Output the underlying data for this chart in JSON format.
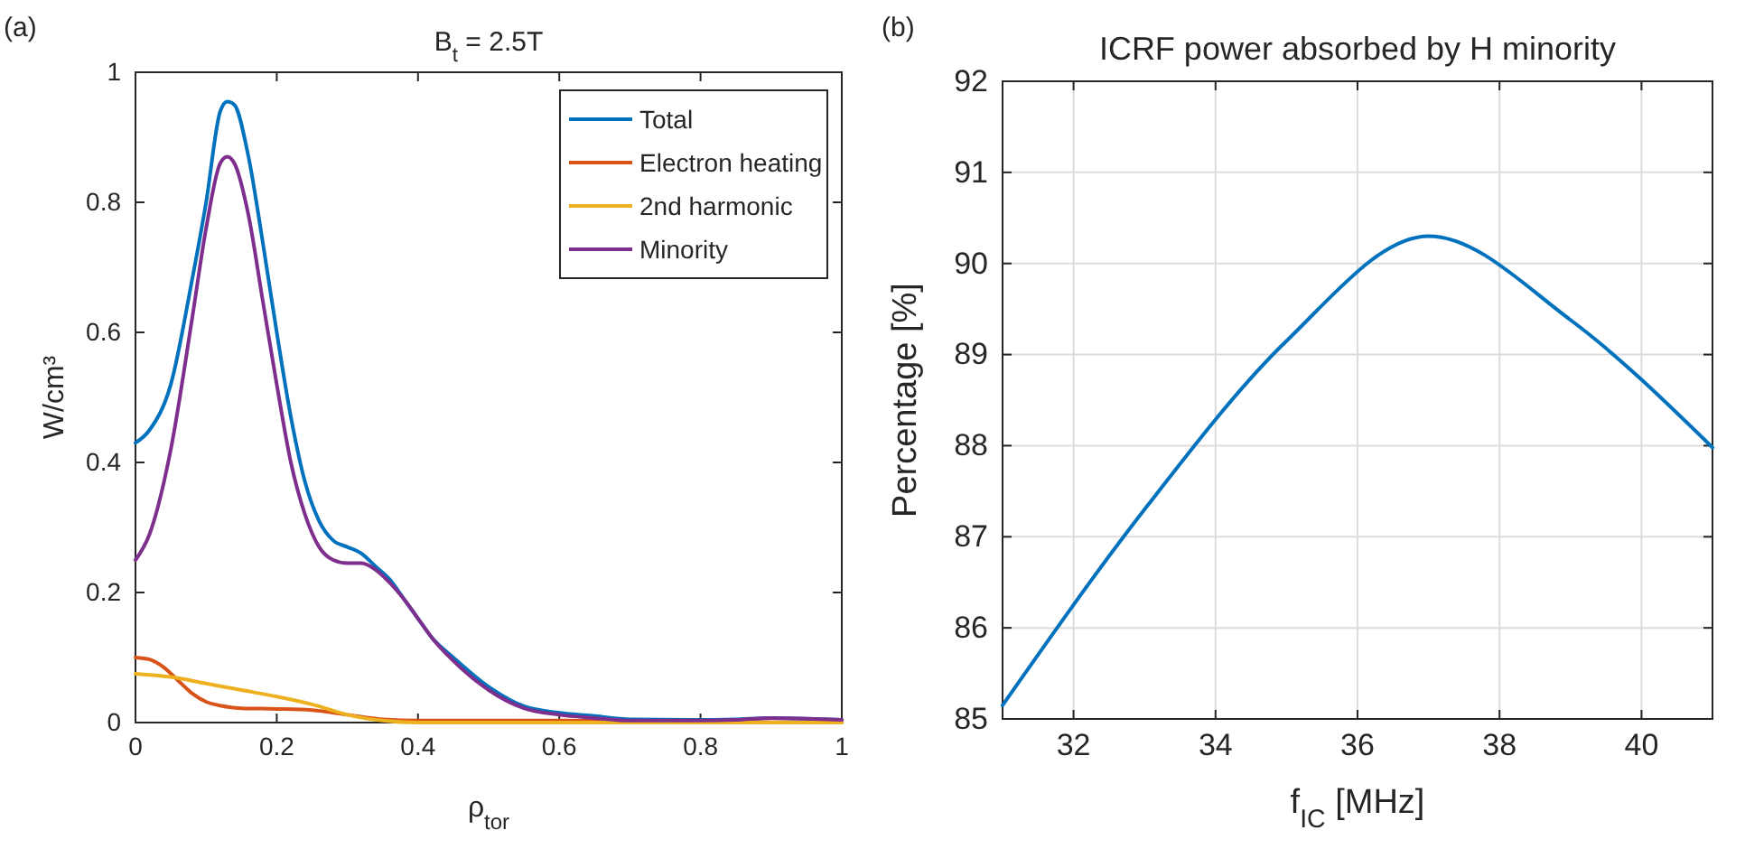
{
  "chart_data": [
    {
      "type": "line",
      "title": "B$_{t}$ = 2.5T",
      "xlabel": "ρ$_{tor}$",
      "ylabel": "W/cm³",
      "annotations": [
        "(a)"
      ],
      "xlim": [
        0,
        1
      ],
      "ylim": [
        0,
        1
      ],
      "xticks": [
        0,
        0.2,
        0.4,
        0.6,
        0.8,
        1
      ],
      "yticks": [
        0,
        0.2,
        0.4,
        0.6,
        0.8,
        1
      ],
      "grid": false,
      "legend": "top right",
      "series": [
        {
          "name": "Total",
          "color": "#0072bd",
          "x": [
            0,
            0.02,
            0.05,
            0.08,
            0.1,
            0.12,
            0.13,
            0.14,
            0.16,
            0.18,
            0.2,
            0.22,
            0.24,
            0.26,
            0.28,
            0.3,
            0.32,
            0.34,
            0.36,
            0.38,
            0.4,
            0.42,
            0.45,
            0.5,
            0.55,
            0.6,
            0.65,
            0.7,
            0.8,
            0.85,
            0.9,
            0.95,
            1
          ],
          "values": [
            0.43,
            0.45,
            0.52,
            0.68,
            0.8,
            0.94,
            0.955,
            0.95,
            0.87,
            0.74,
            0.6,
            0.47,
            0.37,
            0.31,
            0.28,
            0.27,
            0.26,
            0.24,
            0.22,
            0.19,
            0.16,
            0.13,
            0.1,
            0.055,
            0.025,
            0.015,
            0.01,
            0.005,
            0.004,
            0.005,
            0.007,
            0.006,
            0.004
          ]
        },
        {
          "name": "Electron heating",
          "color": "#d95319",
          "x": [
            0,
            0.02,
            0.04,
            0.06,
            0.08,
            0.1,
            0.12,
            0.15,
            0.2,
            0.25,
            0.3,
            0.35,
            0.4,
            0.6,
            0.8,
            1
          ],
          "values": [
            0.1,
            0.097,
            0.085,
            0.065,
            0.045,
            0.032,
            0.026,
            0.022,
            0.021,
            0.019,
            0.012,
            0.005,
            0.003,
            0.003,
            0.001,
            0
          ]
        },
        {
          "name": "2nd harmonic",
          "color": "#edb120",
          "x": [
            0,
            0.05,
            0.1,
            0.15,
            0.2,
            0.25,
            0.3,
            0.35,
            0.4,
            1
          ],
          "values": [
            0.075,
            0.07,
            0.06,
            0.05,
            0.04,
            0.028,
            0.012,
            0.003,
            0,
            0
          ]
        },
        {
          "name": "Minority",
          "color": "#7e2f8e",
          "x": [
            0,
            0.02,
            0.05,
            0.08,
            0.1,
            0.12,
            0.13,
            0.14,
            0.16,
            0.18,
            0.2,
            0.22,
            0.24,
            0.26,
            0.28,
            0.3,
            0.32,
            0.34,
            0.36,
            0.38,
            0.4,
            0.42,
            0.45,
            0.5,
            0.55,
            0.6,
            0.65,
            0.7,
            0.8,
            0.85,
            0.9,
            0.95,
            1
          ],
          "values": [
            0.25,
            0.29,
            0.42,
            0.62,
            0.76,
            0.86,
            0.87,
            0.86,
            0.78,
            0.65,
            0.52,
            0.4,
            0.32,
            0.27,
            0.25,
            0.245,
            0.245,
            0.235,
            0.215,
            0.19,
            0.16,
            0.13,
            0.095,
            0.05,
            0.022,
            0.012,
            0.007,
            0.003,
            0.003,
            0.004,
            0.007,
            0.006,
            0.004
          ]
        }
      ]
    },
    {
      "type": "line",
      "title": "ICRF power absorbed by H minority",
      "xlabel": "f$_{IC}$ [MHz]",
      "ylabel": "Percentage [%]",
      "annotations": [
        "(b)"
      ],
      "xlim": [
        31,
        41
      ],
      "ylim": [
        85,
        92
      ],
      "xticks": [
        32,
        34,
        36,
        38,
        40
      ],
      "yticks": [
        85,
        86,
        87,
        88,
        89,
        90,
        91,
        92
      ],
      "grid": true,
      "series": [
        {
          "color": "#0072bd",
          "x": [
            31,
            33,
            35,
            37,
            39,
            41
          ],
          "values": [
            85.15,
            87.3,
            89.15,
            90.3,
            89.38,
            87.98
          ]
        }
      ]
    }
  ]
}
